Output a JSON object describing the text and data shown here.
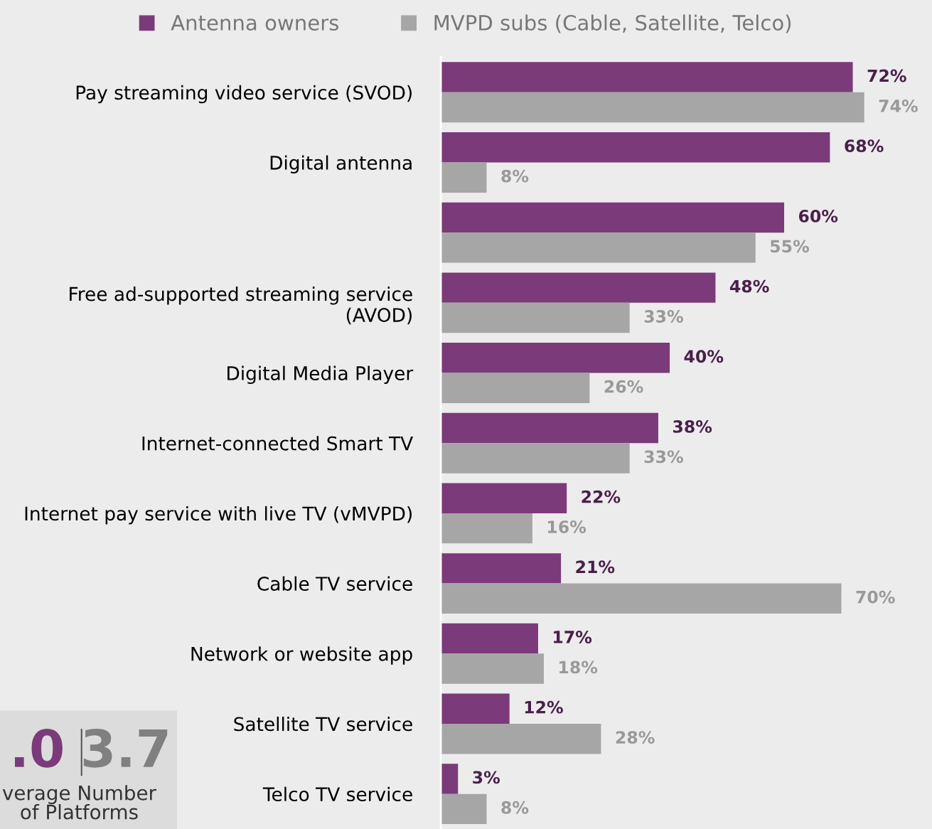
{
  "chart_data": {
    "type": "bar",
    "orientation": "horizontal",
    "legend": "top",
    "grid": false,
    "categories": [
      "Pay streaming video service (SVOD)",
      "Digital antenna",
      null,
      "Free ad-supported streaming service\n(AVOD)",
      "Digital Media Player",
      "Internet-connected Smart TV",
      "Internet pay service with live TV (vMVPD)",
      "Cable TV service",
      "Network or website app",
      "Satellite TV service",
      "Telco TV service"
    ],
    "series": [
      {
        "name": "Antenna owners",
        "color": "#7b3a7a",
        "values": [
          72,
          68,
          60,
          48,
          40,
          38,
          22,
          21,
          17,
          12,
          3
        ],
        "value_labels": [
          "72%",
          "68%",
          "60%",
          "48%",
          "40%",
          "38%",
          "22%",
          "21%",
          "17%",
          "12%",
          "3%"
        ]
      },
      {
        "name": "MVPD subs (Cable, Satellite, Telco)",
        "color": "#a6a6a6",
        "values": [
          74,
          8,
          55,
          33,
          26,
          33,
          16,
          70,
          18,
          28,
          8
        ],
        "value_labels": [
          "74%",
          "8%",
          "55%",
          "33%",
          "26%",
          "33%",
          "16%",
          "70%",
          "18%",
          "28%",
          "8%"
        ]
      }
    ],
    "annotations": [
      ".0",
      "3.7",
      "verage Number\nof Platforms"
    ]
  }
}
